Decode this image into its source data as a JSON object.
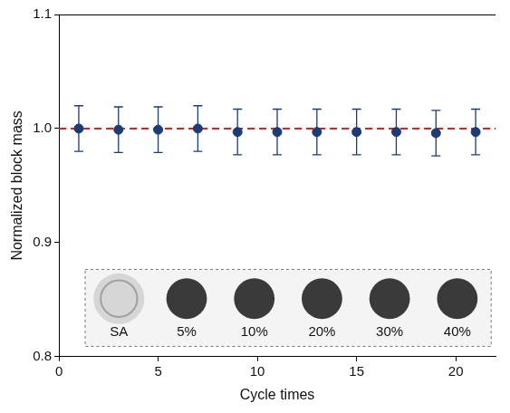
{
  "chart_data": {
    "type": "scatter",
    "x": [
      1,
      3,
      5,
      7,
      9,
      11,
      13,
      15,
      17,
      19,
      21
    ],
    "values": [
      1.0,
      0.999,
      0.999,
      1.0,
      0.997,
      0.997,
      0.997,
      0.997,
      0.997,
      0.996,
      0.997
    ],
    "errors": [
      0.02,
      0.02,
      0.02,
      0.02,
      0.02,
      0.02,
      0.02,
      0.02,
      0.02,
      0.02,
      0.02
    ],
    "color": "#1c3c78",
    "marker": "circle",
    "xlabel": "Cycle times",
    "ylabel": "Normalized block mass",
    "xlim": [
      0,
      22
    ],
    "xticks": [
      0,
      5,
      10,
      15,
      20
    ],
    "ylim": [
      0.8,
      1.1
    ],
    "yticks": [
      0.8,
      0.9,
      {
        "value": 1,
        "label": "1.0"
      },
      1.1
    ],
    "grid": false,
    "reference_line": {
      "value": 1,
      "color": "#e02020",
      "line_style": "dashed"
    },
    "inset_labels": [
      "SA",
      "5%",
      "10%",
      "20%",
      "30%",
      "40%"
    ]
  }
}
